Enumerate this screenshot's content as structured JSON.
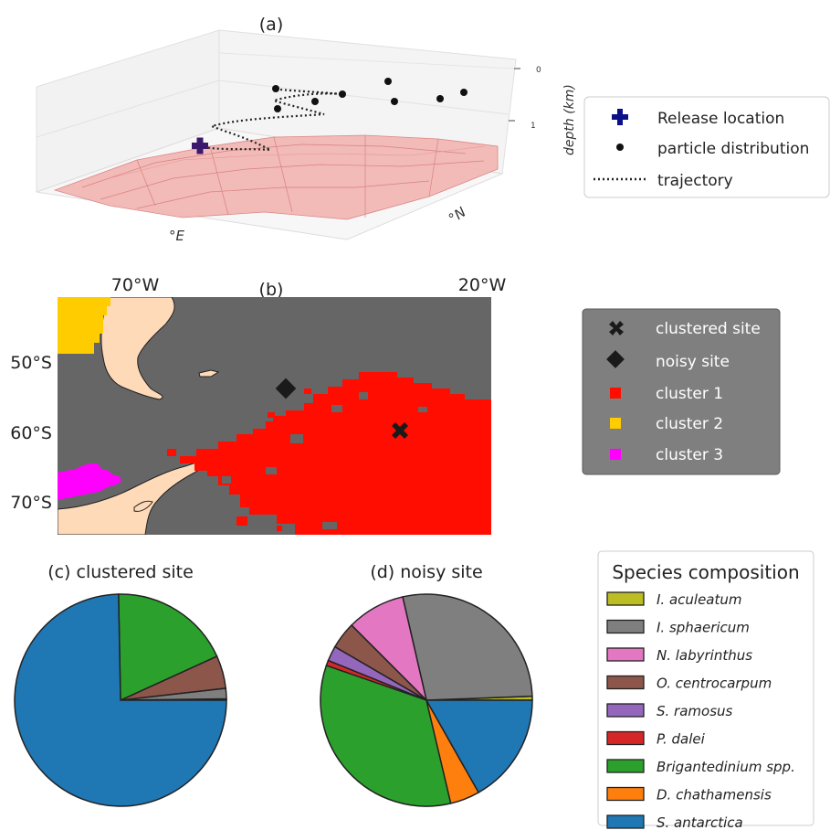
{
  "panel_a": {
    "label": "(a)",
    "zlabel": "depth (km)",
    "zticks": [
      "0",
      "1"
    ],
    "xlabel": "°E",
    "ylabel": "°N",
    "legend": {
      "release": "Release location",
      "particles": "particle distribution",
      "trajectory": "trajectory"
    }
  },
  "panel_b": {
    "label": "(b)",
    "lon_ticks": [
      "70°W",
      "20°W"
    ],
    "lat_ticks": [
      "50°S",
      "60°S",
      "70°S"
    ],
    "legend": {
      "clustered": "clustered site",
      "noisy": "noisy site",
      "c1": "cluster 1",
      "c2": "cluster 2",
      "c3": "cluster 3"
    },
    "colors": {
      "ocean": "#666666",
      "land": "#FFDAB9",
      "c1": "#FF0D00",
      "c2": "#FFCC00",
      "c3": "#FF00FF"
    }
  },
  "legend_species": {
    "title": "Species composition"
  },
  "chart_data": [
    {
      "type": "pie",
      "title": "(c) clustered site",
      "categories": [
        "I. aculeatum",
        "I. sphaericum",
        "N. labyrinthus",
        "O. centrocarpum",
        "S. ramosus",
        "P. dalei",
        "Brigantedinium spp.",
        "D. chathamensis",
        "S. antarctica"
      ],
      "values": [
        0.2,
        1.6,
        0,
        5.0,
        0,
        0,
        18.5,
        0,
        74.7
      ],
      "colors": [
        "#bcbd22",
        "#7f7f7f",
        "#e377c2",
        "#8c564b",
        "#9467bd",
        "#d62728",
        "#2ca02c",
        "#ff7f0e",
        "#1f77b4"
      ]
    },
    {
      "type": "pie",
      "title": "(d) noisy site",
      "categories": [
        "I. aculeatum",
        "I. sphaericum",
        "N. labyrinthus",
        "O. centrocarpum",
        "S. ramosus",
        "P. dalei",
        "Brigantedinium spp.",
        "D. chathamensis",
        "S. antarctica"
      ],
      "values": [
        0.6,
        28.0,
        8.9,
        4.1,
        2.3,
        0.8,
        34.0,
        4.5,
        16.8
      ],
      "colors": [
        "#bcbd22",
        "#7f7f7f",
        "#e377c2",
        "#8c564b",
        "#9467bd",
        "#d62728",
        "#2ca02c",
        "#ff7f0e",
        "#1f77b4"
      ]
    }
  ]
}
